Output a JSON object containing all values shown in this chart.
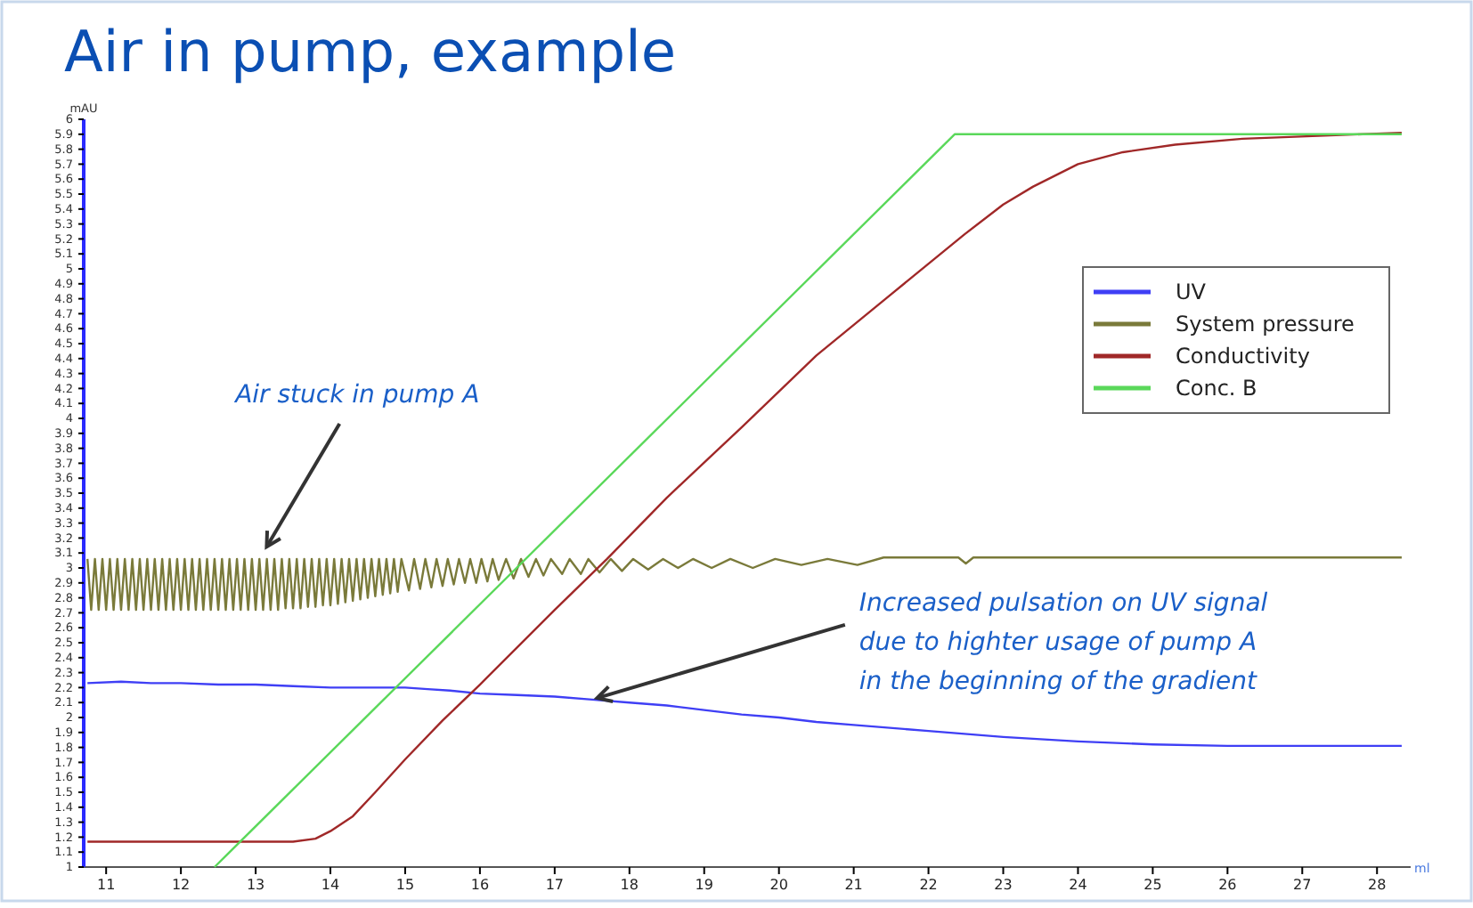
{
  "chart_data": {
    "type": "line",
    "title": "Air in pump, example",
    "xlabel": "ml",
    "ylabel": "mAU",
    "xlim": [
      10.7,
      28.45
    ],
    "xticks": [
      11,
      12,
      13,
      14,
      15,
      16,
      17,
      18,
      19,
      20,
      21,
      22,
      23,
      24,
      25,
      26,
      27,
      28
    ],
    "ylim": [
      1,
      6
    ],
    "yticks": [
      1,
      1.1,
      1.2,
      1.3,
      1.4,
      1.5,
      1.6,
      1.7,
      1.8,
      1.9,
      2,
      2.1,
      2.2,
      2.3,
      2.4,
      2.5,
      2.6,
      2.7,
      2.8,
      2.9,
      3,
      3.1,
      3.2,
      3.3,
      3.4,
      3.5,
      3.6,
      3.7,
      3.8,
      3.9,
      4,
      4.1,
      4.2,
      4.3,
      4.4,
      4.5,
      4.6,
      4.7,
      4.8,
      4.9,
      5,
      5.1,
      5.2,
      5.3,
      5.4,
      5.5,
      5.6,
      5.7,
      5.8,
      5.9,
      6
    ],
    "grid": false,
    "legend": "top right",
    "series": [
      {
        "name": "UV",
        "color": "#3f3ff5",
        "x": [
          10.75,
          11.2,
          11.6,
          12,
          12.5,
          13,
          13.5,
          14,
          14.5,
          15,
          15.3,
          15.6,
          16,
          16.5,
          17,
          17.5,
          18,
          18.5,
          19,
          19.5,
          20,
          20.5,
          21,
          22,
          23,
          24,
          25,
          26,
          27,
          28.33
        ],
        "values": [
          2.23,
          2.24,
          2.23,
          2.23,
          2.22,
          2.22,
          2.21,
          2.2,
          2.2,
          2.2,
          2.19,
          2.18,
          2.16,
          2.15,
          2.14,
          2.12,
          2.1,
          2.08,
          2.05,
          2.02,
          2.0,
          1.97,
          1.95,
          1.91,
          1.87,
          1.84,
          1.82,
          1.81,
          1.81,
          1.81
        ]
      },
      {
        "name": "System pressure",
        "color": "#7a7a3a",
        "x": [
          10.75,
          10.8,
          10.85,
          10.9,
          10.95,
          11.0,
          11.05,
          11.1,
          11.15,
          11.2,
          11.25,
          11.3,
          11.35,
          11.4,
          11.45,
          11.5,
          11.55,
          11.6,
          11.65,
          11.7,
          11.75,
          11.8,
          11.85,
          11.9,
          11.95,
          12.0,
          12.05,
          12.1,
          12.15,
          12.2,
          12.25,
          12.3,
          12.35,
          12.4,
          12.45,
          12.5,
          12.55,
          12.6,
          12.65,
          12.7,
          12.75,
          12.8,
          12.85,
          12.9,
          12.95,
          13.0,
          13.05,
          13.1,
          13.15,
          13.2,
          13.25,
          13.3,
          13.35,
          13.4,
          13.45,
          13.5,
          13.55,
          13.6,
          13.65,
          13.7,
          13.75,
          13.8,
          13.85,
          13.9,
          13.95,
          14.0,
          14.05,
          14.1,
          14.15,
          14.2,
          14.25,
          14.3,
          14.35,
          14.4,
          14.45,
          14.5,
          14.55,
          14.6,
          14.65,
          14.7,
          14.75,
          14.8,
          14.85,
          14.9,
          14.95,
          15.05,
          15.12,
          15.2,
          15.27,
          15.35,
          15.42,
          15.5,
          15.57,
          15.65,
          15.72,
          15.8,
          15.87,
          15.95,
          16.02,
          16.1,
          16.17,
          16.25,
          16.35,
          16.45,
          16.55,
          16.65,
          16.75,
          16.85,
          16.95,
          17.1,
          17.2,
          17.35,
          17.45,
          17.6,
          17.75,
          17.9,
          18.05,
          18.25,
          18.45,
          18.65,
          18.85,
          19.1,
          19.35,
          19.65,
          19.95,
          20.3,
          20.65,
          21.05,
          21.4,
          22.4,
          22.5,
          22.6,
          28.33
        ],
        "values": [
          3.06,
          2.72,
          3.06,
          2.72,
          3.06,
          2.72,
          3.06,
          2.72,
          3.06,
          2.72,
          3.06,
          2.72,
          3.06,
          2.72,
          3.06,
          2.72,
          3.06,
          2.72,
          3.06,
          2.72,
          3.06,
          2.72,
          3.06,
          2.72,
          3.06,
          2.72,
          3.06,
          2.72,
          3.06,
          2.72,
          3.06,
          2.72,
          3.06,
          2.72,
          3.06,
          2.72,
          3.06,
          2.72,
          3.06,
          2.72,
          3.06,
          2.72,
          3.06,
          2.72,
          3.06,
          2.72,
          3.06,
          2.72,
          3.06,
          2.72,
          3.06,
          2.72,
          3.06,
          2.73,
          3.06,
          2.73,
          3.06,
          2.73,
          3.06,
          2.74,
          3.06,
          2.74,
          3.06,
          2.75,
          3.06,
          2.75,
          3.06,
          2.76,
          3.06,
          2.77,
          3.06,
          2.78,
          3.06,
          2.79,
          3.06,
          2.8,
          3.06,
          2.81,
          3.06,
          2.82,
          3.06,
          2.83,
          3.06,
          2.84,
          3.06,
          2.85,
          3.06,
          2.86,
          3.06,
          2.87,
          3.06,
          2.88,
          3.06,
          2.89,
          3.06,
          2.9,
          3.06,
          2.9,
          3.06,
          2.91,
          3.06,
          2.92,
          3.06,
          2.93,
          3.06,
          2.94,
          3.06,
          2.95,
          3.06,
          2.96,
          3.06,
          2.96,
          3.06,
          2.97,
          3.06,
          2.98,
          3.06,
          2.99,
          3.06,
          3.0,
          3.06,
          3.0,
          3.06,
          3.0,
          3.06,
          3.02,
          3.06,
          3.02,
          3.07,
          3.07,
          3.03,
          3.07,
          3.07
        ]
      },
      {
        "name": "Conductivity",
        "color": "#a02828",
        "x": [
          10.75,
          13.5,
          13.8,
          14,
          14.3,
          14.6,
          15,
          15.5,
          16,
          17,
          17.7,
          18.5,
          19.5,
          20.5,
          21.5,
          22.48,
          23,
          23.4,
          24,
          24.6,
          25.3,
          26.2,
          27.2,
          28.33
        ],
        "values": [
          1.17,
          1.17,
          1.19,
          1.24,
          1.34,
          1.5,
          1.72,
          1.98,
          2.22,
          2.72,
          3.06,
          3.47,
          3.94,
          4.42,
          4.83,
          5.23,
          5.43,
          5.55,
          5.7,
          5.78,
          5.83,
          5.87,
          null,
          5.91
        ]
      },
      {
        "name": "Conc. B",
        "color": "#5ad85a",
        "x": [
          12.45,
          22.35,
          28.33
        ],
        "values": [
          1.0,
          5.9,
          5.9
        ]
      }
    ],
    "annotations": [
      {
        "text": "Air stuck in pump A",
        "x": 13.05,
        "y": 3.06
      },
      {
        "text": "Increased pulsation on UV signal\ndue to highter usage of pump A\nin the beginning of the gradient",
        "x": 17.5,
        "y": 2.12
      }
    ]
  }
}
